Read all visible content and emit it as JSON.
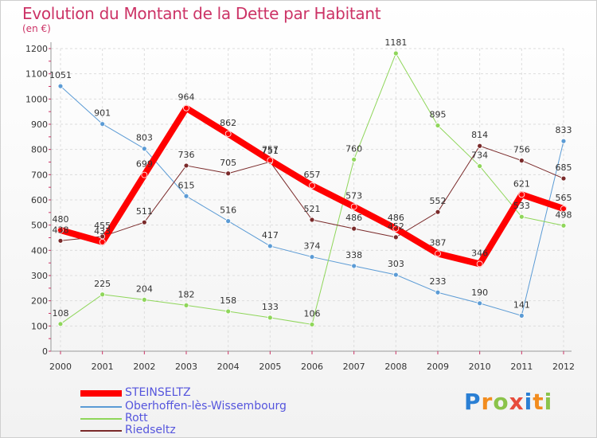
{
  "title": "Evolution du Montant de la Dette par Habitant",
  "subtitle": "(en €)",
  "colors": {
    "title": "#cc3366",
    "legend_text": "#5555dd",
    "grid": "#dddddd"
  },
  "legend": [
    {
      "label": "STEINSELTZ",
      "color": "#ff0000"
    },
    {
      "label": "Oberhoffen-lès-Wissembourg",
      "color": "#5b9bd5"
    },
    {
      "label": "Rott",
      "color": "#8fd65a"
    },
    {
      "label": "Riedseltz",
      "color": "#7a2a2a"
    }
  ],
  "logo": {
    "text": "Proxiti"
  },
  "chart_data": {
    "type": "line",
    "title": "Evolution du Montant de la Dette par Habitant",
    "subtitle": "(en €)",
    "xlabel": "",
    "ylabel": "",
    "x": [
      "2000",
      "2001",
      "2002",
      "2003",
      "2004",
      "2005",
      "2006",
      "2007",
      "2008",
      "2009",
      "2010",
      "2011",
      "2012"
    ],
    "ylim": [
      0,
      1200
    ],
    "yticks": [
      0,
      100,
      200,
      300,
      400,
      500,
      600,
      700,
      800,
      900,
      1000,
      1100,
      1200
    ],
    "grid": true,
    "legend_position": "bottom-left",
    "series": [
      {
        "name": "STEINSELTZ",
        "color": "#ff0000",
        "width": 8,
        "values": [
          480,
          433,
          699,
          964,
          862,
          757,
          657,
          573,
          486,
          387,
          346,
          621,
          565
        ],
        "labels": [
          "480",
          "433",
          "699",
          "964",
          "862",
          "757",
          "657",
          "573",
          "486",
          "387",
          "346",
          "621",
          "565"
        ]
      },
      {
        "name": "Oberhoffen-lès-Wissembourg",
        "color": "#5b9bd5",
        "width": 1,
        "values": [
          1051,
          901,
          803,
          615,
          516,
          417,
          374,
          338,
          303,
          233,
          190,
          141,
          833
        ],
        "labels": [
          "1051",
          "901",
          "803",
          "615",
          "516",
          "417",
          "374",
          "338",
          "303",
          "233",
          "190",
          "141",
          "833"
        ]
      },
      {
        "name": "Rott",
        "color": "#8fd65a",
        "width": 1,
        "values": [
          108,
          225,
          204,
          182,
          158,
          133,
          106,
          760,
          1181,
          895,
          734,
          533,
          498
        ],
        "labels": [
          "108",
          "225",
          "204",
          "182",
          "158",
          "133",
          "106",
          "760",
          "1181",
          "895",
          "734",
          "533",
          "498"
        ]
      },
      {
        "name": "Riedseltz",
        "color": "#7a2a2a",
        "width": 1,
        "values": [
          438,
          455,
          511,
          736,
          705,
          751,
          521,
          486,
          452,
          552,
          814,
          756,
          685
        ],
        "labels": [
          "438",
          "455",
          "511",
          "736",
          "705",
          "751",
          "521",
          "486",
          "452",
          "552",
          "814",
          "756",
          "685"
        ]
      }
    ]
  }
}
